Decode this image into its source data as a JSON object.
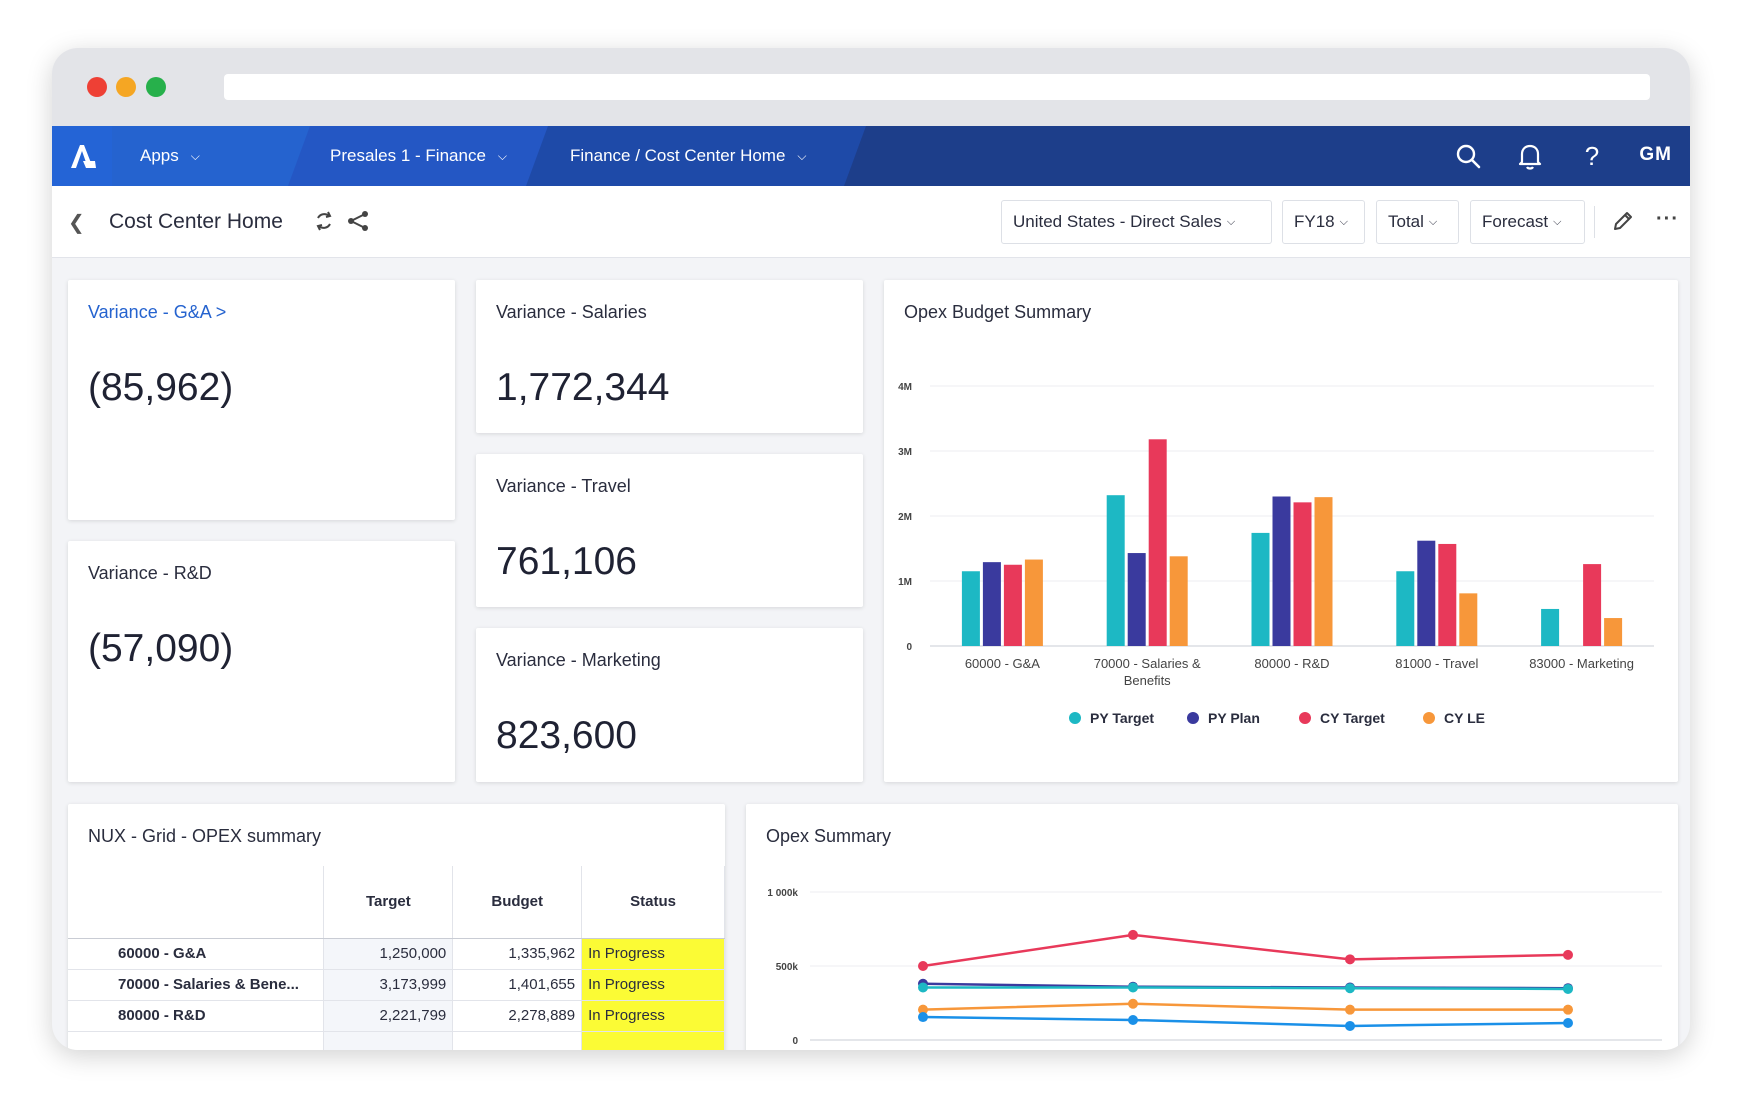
{
  "nav": {
    "apps": "Apps",
    "workspace": "Presales 1 - Finance",
    "page": "Finance / Cost Center Home",
    "user": "GM",
    "icons": [
      "search-icon",
      "bell-icon",
      "help-icon"
    ]
  },
  "subheader": {
    "title": "Cost Center Home",
    "filters": {
      "region": "United States - Direct Sales",
      "year": "FY18",
      "total": "Total",
      "version": "Forecast"
    }
  },
  "kpis": {
    "ga": {
      "title": "Variance - G&A",
      "link_arrow": ">",
      "value": "(85,962)"
    },
    "rd": {
      "title": "Variance - R&D",
      "value": "(57,090)"
    },
    "salaries": {
      "title": "Variance - Salaries",
      "value": "1,772,344"
    },
    "travel": {
      "title": "Variance - Travel",
      "value": "761,106"
    },
    "marketing": {
      "title": "Variance - Marketing",
      "value": "823,600"
    }
  },
  "grid": {
    "title": "NUX - Grid - OPEX summary",
    "columns": [
      "Target",
      "Budget",
      "Status"
    ],
    "rows": [
      {
        "label": "60000 - G&A",
        "target": "1,250,000",
        "budget": "1,335,962",
        "status": "In Progress"
      },
      {
        "label": "70000 - Salaries & Bene...",
        "target": "3,173,999",
        "budget": "1,401,655",
        "status": "In Progress"
      },
      {
        "label": "80000 - R&D",
        "target": "2,221,799",
        "budget": "2,278,889",
        "status": "In Progress"
      }
    ]
  },
  "colors": {
    "teal": "#1db8c4",
    "indigo": "#3a3a9e",
    "red": "#e8395a",
    "orange": "#f7973a",
    "blue": "#1a90e8",
    "nav": "#1d3e8a"
  },
  "chart_data": [
    {
      "type": "bar",
      "title": "Opex Budget Summary",
      "categories": [
        "60000 - G&A",
        "70000 - Salaries & Benefits",
        "80000 - R&D",
        "81000 - Travel",
        "83000 - Marketing"
      ],
      "series": [
        {
          "name": "PY Target",
          "color": "#1db8c4",
          "values": [
            1150000,
            2320000,
            1740000,
            1150000,
            570000
          ]
        },
        {
          "name": "PY Plan",
          "color": "#3a3a9e",
          "values": [
            1290000,
            1430000,
            2300000,
            1620000,
            0
          ]
        },
        {
          "name": "CY Target",
          "color": "#e8395a",
          "values": [
            1250000,
            3180000,
            2210000,
            1570000,
            1260000
          ]
        },
        {
          "name": "CY LE",
          "color": "#f7973a",
          "values": [
            1330000,
            1380000,
            2290000,
            810000,
            430000
          ]
        }
      ],
      "yticks": [
        "0",
        "1M",
        "2M",
        "3M",
        "4M"
      ],
      "ylim": [
        0,
        4000000
      ],
      "grid": true,
      "legend": "bottom"
    },
    {
      "type": "line",
      "title": "Opex Summary",
      "x": [
        1,
        2,
        3,
        4
      ],
      "series": [
        {
          "color": "#e8395a",
          "values": [
            500,
            710,
            545,
            575
          ]
        },
        {
          "color": "#3a3a9e",
          "values": [
            380,
            360,
            355,
            350
          ]
        },
        {
          "color": "#1db8c4",
          "values": [
            355,
            355,
            350,
            345
          ]
        },
        {
          "color": "#f7973a",
          "values": [
            205,
            245,
            205,
            205
          ]
        },
        {
          "color": "#1a90e8",
          "values": [
            155,
            135,
            95,
            115
          ]
        }
      ],
      "yticks": [
        "0",
        "500k",
        "1 000k"
      ],
      "ylim": [
        0,
        1000
      ],
      "grid": true
    }
  ]
}
